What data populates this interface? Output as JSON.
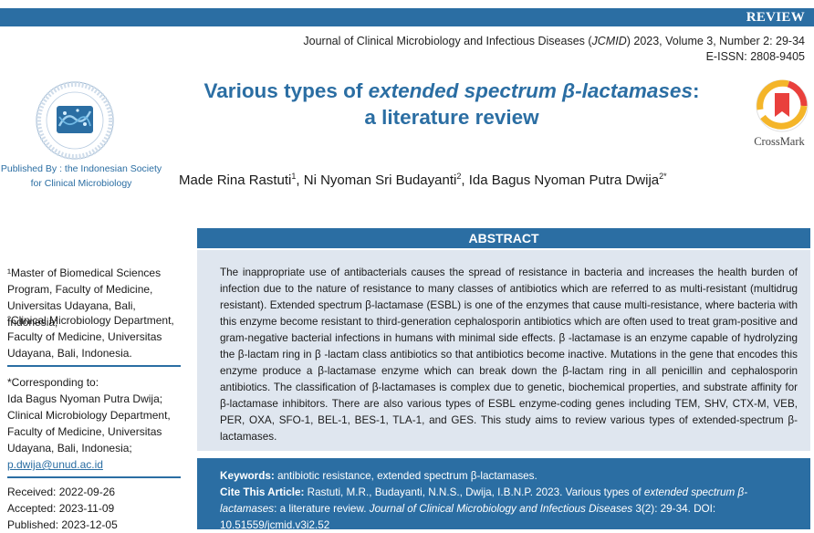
{
  "header": {
    "article_type": "REVIEW",
    "journal_prefix": "Journal of Clinical Microbiology and Infectious Diseases (",
    "journal_abbrev": "JCMID",
    "journal_suffix": ") 2023, Volume 3, Number 2: 29-34",
    "eissn": "E-ISSN: 2808-9405"
  },
  "publisher": {
    "line1": "Published By : the Indonesian Society",
    "line2": "for Clinical Microbiology"
  },
  "title": {
    "part1": "Various types of ",
    "part2_italic": "extended spectrum β-lactamases",
    "part3": ":",
    "line2": "a literature review"
  },
  "crossmark_label": "CrossMark",
  "authors": [
    {
      "name": "Made Rina Rastuti",
      "sup": "1"
    },
    {
      "name": "Ni Nyoman Sri Budayanti",
      "sup": "2"
    },
    {
      "name": "Ida Bagus Nyoman Putra Dwija",
      "sup": "2*"
    }
  ],
  "affiliations": {
    "aff1": "¹Master of Biomedical Sciences Program, Faculty of Medicine, Universitas Udayana, Bali, Indonesia;",
    "aff2": "²Clinical Microbiology Department, Faculty of Medicine, Universitas Udayana, Bali, Indonesia."
  },
  "correspondence": {
    "label": "*Corresponding to:",
    "text": "Ida Bagus Nyoman Putra Dwija; Clinical Microbiology Department, Faculty of Medicine, Universitas Udayana, Bali, Indonesia;",
    "email": "p.dwija@unud.ac.id"
  },
  "dates": {
    "received": "Received: 2022-09-26",
    "accepted": "Accepted: 2023-11-09",
    "published": "Published: 2023-12-05"
  },
  "abstract": {
    "heading": "ABSTRACT",
    "text": "The inappropriate use of antibacterials causes the spread of resistance in bacteria and increases the health burden of infection due to the nature of resistance to many classes of antibiotics which are referred to as multi-resistant (multidrug resistant). Extended spectrum β-lactamase (ESBL) is one of the enzymes that cause multi-resistance, where bacteria with this enzyme become resistant to third-generation cephalosporin antibiotics which are often used to treat gram-positive and gram-negative bacterial infections in humans with minimal side effects. β -lactamase is an enzyme capable of hydrolyzing the β-lactam ring in β -lactam class antibiotics so that antibiotics become inactive. Mutations in the gene that encodes this enzyme produce a β-lactamase enzyme which can break down the β-lactam ring in all penicillin and cephalosporin antibiotics. The classification of β-lactamases is complex due to genetic, biochemical properties, and substrate affinity for β-lactamase inhibitors. There are also various types of ESBL enzyme-coding genes including TEM, SHV, CTX-M, VEB, PER, OXA, SFO-1, BEL-1, BES-1, TLA-1, and GES. This study aims to review various types of extended-spectrum β-lactamases."
  },
  "keywords": {
    "label": "Keywords:",
    "text": " antibiotic resistance, extended spectrum β-lactamases."
  },
  "citation": {
    "label": "Cite This Article:",
    "p1": " Rastuti, M.R., Budayanti, N.N.S., Dwija, I.B.N.P. 2023. Various types of ",
    "p2_italic": "extended spectrum β-lactamases",
    "p3": ": a literature review. ",
    "p4_italic": "Journal of Clinical Microbiology and Infectious Diseases",
    "p5": " 3(2): 29-34. DOI: 10.51559/jcmid.v3i2.52"
  },
  "colors": {
    "brand_blue": "#2b6ea3",
    "abstract_bg": "#dfe6ef",
    "crossmark_red": "#e9403c",
    "crossmark_yellow": "#f4b529"
  }
}
